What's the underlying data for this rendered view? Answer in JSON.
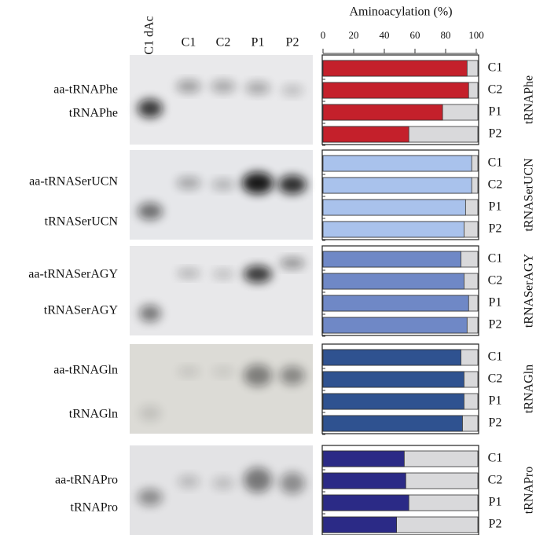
{
  "gel": {
    "lanes": [
      "C1 dAc",
      "C1",
      "C2",
      "P1",
      "P2"
    ],
    "bands": [
      [
        "aa-tRNAPhe",
        "tRNAPhe"
      ],
      [
        "aa-tRNASerUCN",
        "tRNASerUCN"
      ],
      [
        "aa-tRNASerAGY",
        "tRNASerAGY"
      ],
      [
        "aa-tRNAGln",
        "tRNAGln"
      ],
      [
        "aa-tRNAPro",
        "tRNAPro"
      ]
    ]
  },
  "chart_data": {
    "type": "bar",
    "orientation": "horizontal",
    "title": "Aminoacylation (%)",
    "categories": [
      "C1",
      "C2",
      "P1",
      "P2"
    ],
    "series": [
      {
        "name": "tRNAPhe",
        "color": "#c4202b",
        "values": [
          94,
          95,
          78,
          56
        ]
      },
      {
        "name": "tRNASerUCN",
        "color": "#a9c2ec",
        "values": [
          97,
          97,
          93,
          92
        ]
      },
      {
        "name": "tRNASerAGY",
        "color": "#6f88c6",
        "values": [
          90,
          92,
          95,
          94
        ]
      },
      {
        "name": "tRNAGln",
        "color": "#2f5290",
        "values": [
          90,
          92,
          92,
          91
        ]
      },
      {
        "name": "tRNAPro",
        "color": "#2b2a86",
        "values": [
          53,
          54,
          56,
          48
        ]
      }
    ],
    "xlim": [
      0,
      100
    ],
    "xticks": [
      0,
      20,
      40,
      60,
      80,
      100
    ],
    "grid": false
  }
}
